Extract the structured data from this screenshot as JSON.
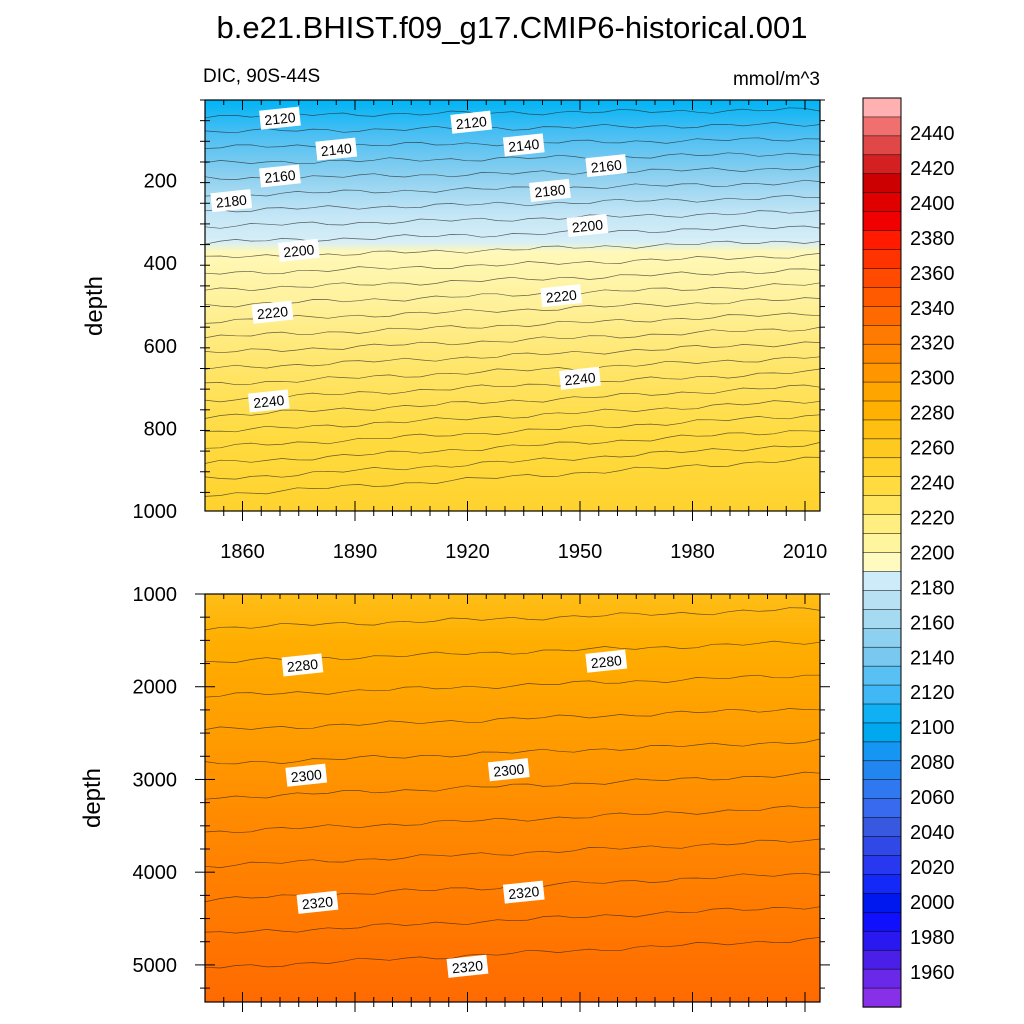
{
  "figure": {
    "title": "b.e21.BHIST.f09_g17.CMIP6-historical.001",
    "left_label": "DIC, 90S-44S",
    "right_label": "mmol/m^3"
  },
  "chart_data": [
    {
      "type": "heatmap",
      "panel": "upper",
      "xlabel": "",
      "ylabel": "depth",
      "xlim": [
        1850,
        2014
      ],
      "ylim": [
        1000,
        5
      ],
      "x_ticks": [
        "1860",
        "1890",
        "1920",
        "1950",
        "1980",
        "2010"
      ],
      "y_ticks": [
        "200",
        "400",
        "600",
        "800",
        "1000"
      ],
      "contour_labels": [
        {
          "text": "2120",
          "year": 1870,
          "depth": 50
        },
        {
          "text": "2140",
          "year": 1885,
          "depth": 125
        },
        {
          "text": "2160",
          "year": 1870,
          "depth": 190
        },
        {
          "text": "2180",
          "year": 1857,
          "depth": 250
        },
        {
          "text": "2200",
          "year": 1875,
          "depth": 370
        },
        {
          "text": "2220",
          "year": 1868,
          "depth": 520
        },
        {
          "text": "2240",
          "year": 1867,
          "depth": 735
        },
        {
          "text": "2120",
          "year": 1921,
          "depth": 60
        },
        {
          "text": "2140",
          "year": 1935,
          "depth": 115
        },
        {
          "text": "2160",
          "year": 1957,
          "depth": 165
        },
        {
          "text": "2180",
          "year": 1942,
          "depth": 225
        },
        {
          "text": "2200",
          "year": 1952,
          "depth": 310
        },
        {
          "text": "2220",
          "year": 1945,
          "depth": 480
        },
        {
          "text": "2240",
          "year": 1950,
          "depth": 680
        }
      ]
    },
    {
      "type": "heatmap",
      "panel": "lower",
      "xlabel": "",
      "ylabel": "depth",
      "xlim": [
        1850,
        2014
      ],
      "ylim": [
        5400,
        1000
      ],
      "y_ticks": [
        "1000",
        "2000",
        "3000",
        "4000",
        "5000"
      ],
      "contour_labels": [
        {
          "text": "2280",
          "year": 1876,
          "depth": 1770
        },
        {
          "text": "2280",
          "year": 1957,
          "depth": 1730
        },
        {
          "text": "2300",
          "year": 1877,
          "depth": 2960
        },
        {
          "text": "2300",
          "year": 1931,
          "depth": 2900
        },
        {
          "text": "2320",
          "year": 1880,
          "depth": 4330
        },
        {
          "text": "2320",
          "year": 1935,
          "depth": 4220
        },
        {
          "text": "2320",
          "year": 1920,
          "depth": 5020
        }
      ]
    }
  ],
  "colorbar": {
    "labels": [
      "2440",
      "2420",
      "2400",
      "2380",
      "2360",
      "2340",
      "2320",
      "2300",
      "2280",
      "2260",
      "2240",
      "2220",
      "2200",
      "2180",
      "2160",
      "2140",
      "2120",
      "2100",
      "2080",
      "2060",
      "2040",
      "2020",
      "2000",
      "1980",
      "1960"
    ],
    "colors": [
      "#FFB0B0",
      "#F07070",
      "#E04848",
      "#D42020",
      "#CC0000",
      "#E00000",
      "#F00000",
      "#FF1A00",
      "#FF3300",
      "#FF4A00",
      "#FF5A00",
      "#FF6A00",
      "#FF7A00",
      "#FF8800",
      "#FF9600",
      "#FFA500",
      "#FFB000",
      "#FFBF10",
      "#FFCA20",
      "#FFD22E",
      "#FFDB40",
      "#FFE45E",
      "#FFEE80",
      "#FFF59E",
      "#FFFBC0",
      "#CDEBF8",
      "#B8E2F3",
      "#A5DAF0",
      "#8DD0F0",
      "#78C8F0",
      "#58C0F3",
      "#40B8F5",
      "#10B0F5",
      "#00A8F0",
      "#1496F2",
      "#2286F0",
      "#3078F0",
      "#386AF0",
      "#3858E0",
      "#3048E8",
      "#2838F0",
      "#1428F8",
      "#0018F0",
      "#1010FF",
      "#2A18F0",
      "#4A20E8",
      "#6A28E8",
      "#8830E8"
    ]
  }
}
